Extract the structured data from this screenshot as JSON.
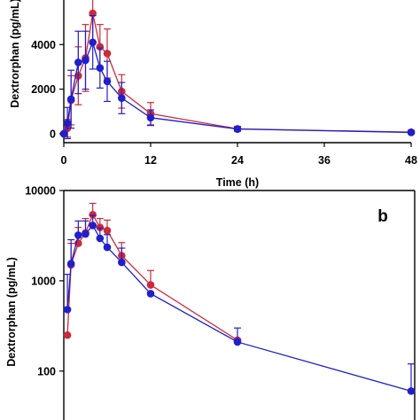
{
  "chart_data": [
    {
      "type": "line",
      "panel_label": "",
      "xlabel": "Time (h)",
      "ylabel": "Dextrorphan (pg/mL)",
      "xlim": [
        0,
        48
      ],
      "ylim": [
        -400,
        6000
      ],
      "xticks": [
        0,
        12,
        24,
        36,
        48
      ],
      "yticks": [
        0,
        2000,
        4000
      ],
      "yscale": "linear",
      "grid": false,
      "series": [
        {
          "color": "#cc2a3a",
          "x": [
            0,
            0.5,
            1,
            2,
            3,
            4,
            5,
            6,
            8,
            12,
            24,
            48
          ],
          "y": [
            0,
            250,
            1500,
            2600,
            3400,
            5400,
            3900,
            3600,
            1900,
            900,
            220,
            70
          ],
          "err": [
            0,
            400,
            1100,
            1300,
            1500,
            1300,
            1000,
            1100,
            750,
            500,
            110,
            80
          ]
        },
        {
          "color": "#1f1fcc",
          "x": [
            0,
            0.5,
            1,
            2,
            3,
            4,
            5,
            6,
            8,
            12,
            24,
            48
          ],
          "y": [
            0,
            480,
            1550,
            3200,
            3300,
            4100,
            2950,
            2350,
            1600,
            720,
            210,
            60
          ],
          "err": [
            0,
            700,
            1300,
            1400,
            1300,
            1200,
            900,
            900,
            700,
            350,
            90,
            60
          ]
        }
      ]
    },
    {
      "type": "line",
      "panel_label": "b",
      "xlabel": "",
      "ylabel": "Dextrorphan (pg/mL)",
      "xlim": [
        0,
        48
      ],
      "ylim": [
        20,
        10000
      ],
      "yticks": [
        100,
        1000,
        10000
      ],
      "ytick_labels": [
        "100",
        "1000",
        "10000"
      ],
      "yscale": "log",
      "grid": false,
      "series": [
        {
          "color": "#cc2a3a",
          "x": [
            0.5,
            1,
            2,
            3,
            4,
            5,
            6,
            8,
            12,
            24
          ],
          "y": [
            250,
            1500,
            2600,
            3400,
            5400,
            3900,
            3600,
            1900,
            900,
            220
          ],
          "err_up": [
            0,
            1100,
            1300,
            1500,
            1800,
            1000,
            1100,
            750,
            400,
            0
          ]
        },
        {
          "color": "#1f1fcc",
          "x": [
            0.5,
            1,
            2,
            3,
            4,
            5,
            6,
            8,
            12,
            24,
            48
          ],
          "y": [
            480,
            1550,
            3200,
            3300,
            4100,
            2950,
            2350,
            1600,
            720,
            210,
            60
          ],
          "err_up": [
            700,
            1300,
            1400,
            1300,
            1200,
            900,
            900,
            700,
            0,
            90,
            60
          ]
        }
      ]
    }
  ]
}
